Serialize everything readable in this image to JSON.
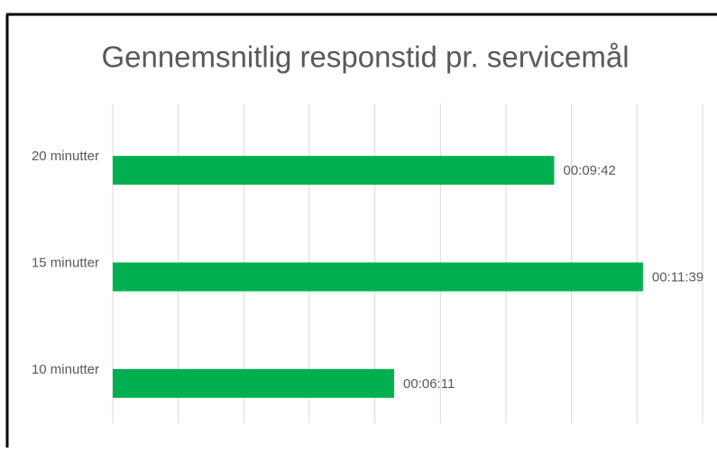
{
  "chart_data": {
    "type": "bar",
    "orientation": "horizontal",
    "title": "Gennemsnitlig responstid pr. servicemål",
    "categories": [
      "20 minutter",
      "15 minutter",
      "10 minutter"
    ],
    "values": [
      582,
      699,
      371
    ],
    "value_labels": [
      "00:09:42",
      "00:11:39",
      "00:06:11"
    ],
    "color": "#00b050",
    "xlim": [
      0,
      777.6
    ],
    "xticks": [
      0,
      86.4,
      172.8,
      259.2,
      345.6,
      432,
      518.4,
      604.8,
      691.2,
      777.6
    ],
    "grid": true
  }
}
